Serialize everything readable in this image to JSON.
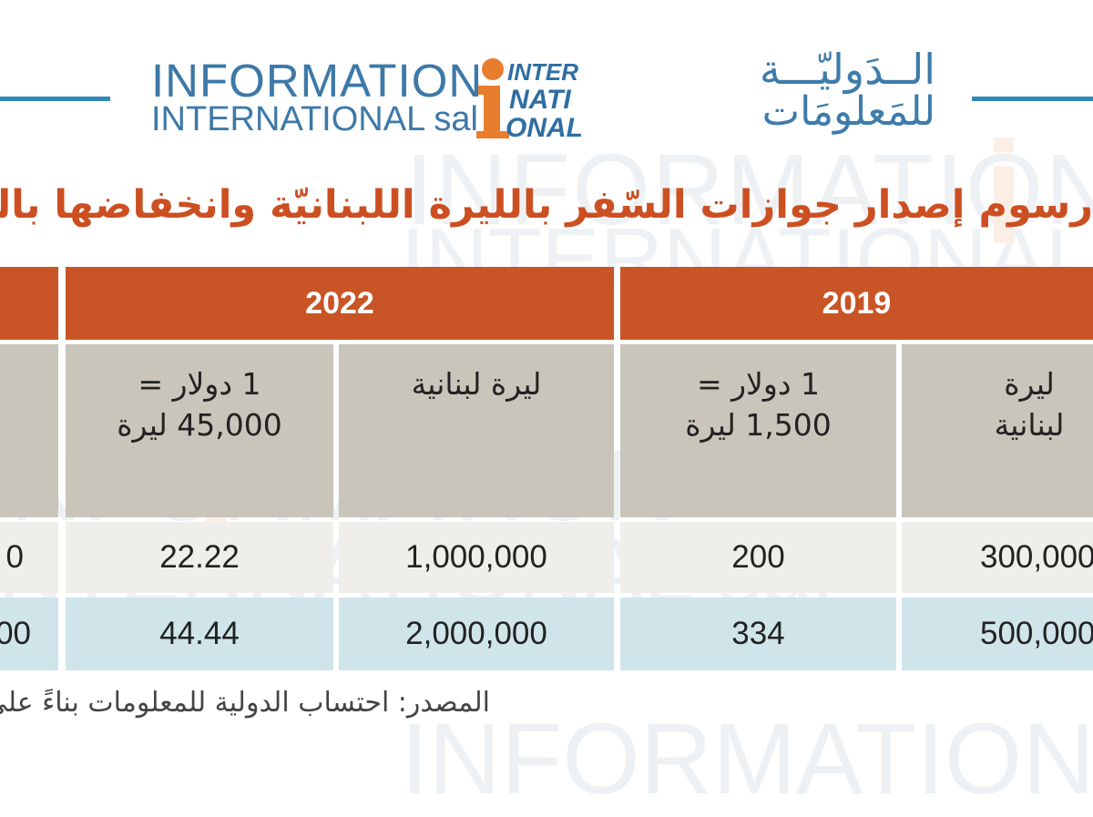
{
  "logo": {
    "en_line1": "INFORMATION",
    "en_line2": "INTERNATIONAL sal",
    "mark_letters": [
      "INTER",
      "NATI",
      "ONAL"
    ],
    "ar_line1": "الــدَوليّـــة",
    "ar_line2": "للمَعلومَات",
    "brand_blue": "#2f86b7",
    "brand_orange": "#e97d2e"
  },
  "title": "رسوم إصدار جوازات السّفر بالليرة اللبنانيّة وانخفاضها بالدولار الأميركي",
  "table": {
    "years": [
      "2019",
      "2022"
    ],
    "subheaders": {
      "lbp": "ليرة لبنانية",
      "usd_2019": "1 دولار = 1,500 ليرة",
      "usd_2022": "1 دولار = 45,000 ليرة"
    },
    "rows": [
      {
        "lbp_2019": "300,000",
        "usd_2019": "200",
        "lbp_2022": "1,000,000",
        "usd_2022": "22.22",
        "partial_left": "0"
      },
      {
        "lbp_2019": "500,000",
        "usd_2019": "334",
        "lbp_2022": "2,000,000",
        "usd_2022": "44.44",
        "partial_left": "00"
      }
    ],
    "colors": {
      "year_bg": "#c95425",
      "sub_bg": "#c9c5bb",
      "row1_bg": "#efeeea",
      "row2_bg": "#cfe5ea"
    }
  },
  "footnote": "المصدر: احتساب الدولية للمعلومات بناءً على تعديلات رسوم إصدار جوازات السفر."
}
